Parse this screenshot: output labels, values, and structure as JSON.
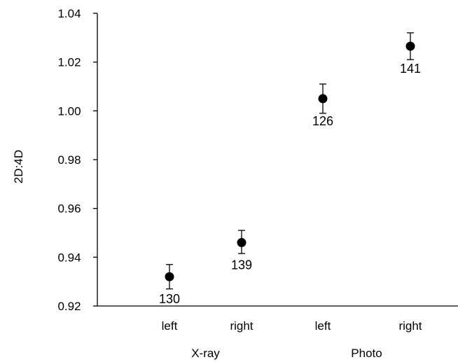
{
  "chart_data": {
    "type": "scatter",
    "ylabel": "2D:4D",
    "ylim": [
      0.92,
      1.04
    ],
    "yticks": [
      0.92,
      0.94,
      0.96,
      0.98,
      1.0,
      1.02,
      1.04
    ],
    "ytick_labels": [
      "0.92",
      "0.94",
      "0.96",
      "0.98",
      "1.00",
      "1.02",
      "1.04"
    ],
    "categories": [
      "left",
      "right",
      "left",
      "right"
    ],
    "groups": [
      {
        "label": "X-ray",
        "categories": [
          0,
          1
        ]
      },
      {
        "label": "Photo",
        "categories": [
          2,
          3
        ]
      }
    ],
    "points": [
      {
        "category": "left",
        "group": "X-ray",
        "value": 0.932,
        "error_low": 0.927,
        "error_high": 0.937,
        "n_label": "130"
      },
      {
        "category": "right",
        "group": "X-ray",
        "value": 0.946,
        "error_low": 0.9415,
        "error_high": 0.951,
        "n_label": "139"
      },
      {
        "category": "left",
        "group": "Photo",
        "value": 1.005,
        "error_low": 0.999,
        "error_high": 1.011,
        "n_label": "126"
      },
      {
        "category": "right",
        "group": "Photo",
        "value": 1.0265,
        "error_low": 1.021,
        "error_high": 1.032,
        "n_label": "141"
      }
    ],
    "grid": false,
    "marker_color": "#000000"
  }
}
